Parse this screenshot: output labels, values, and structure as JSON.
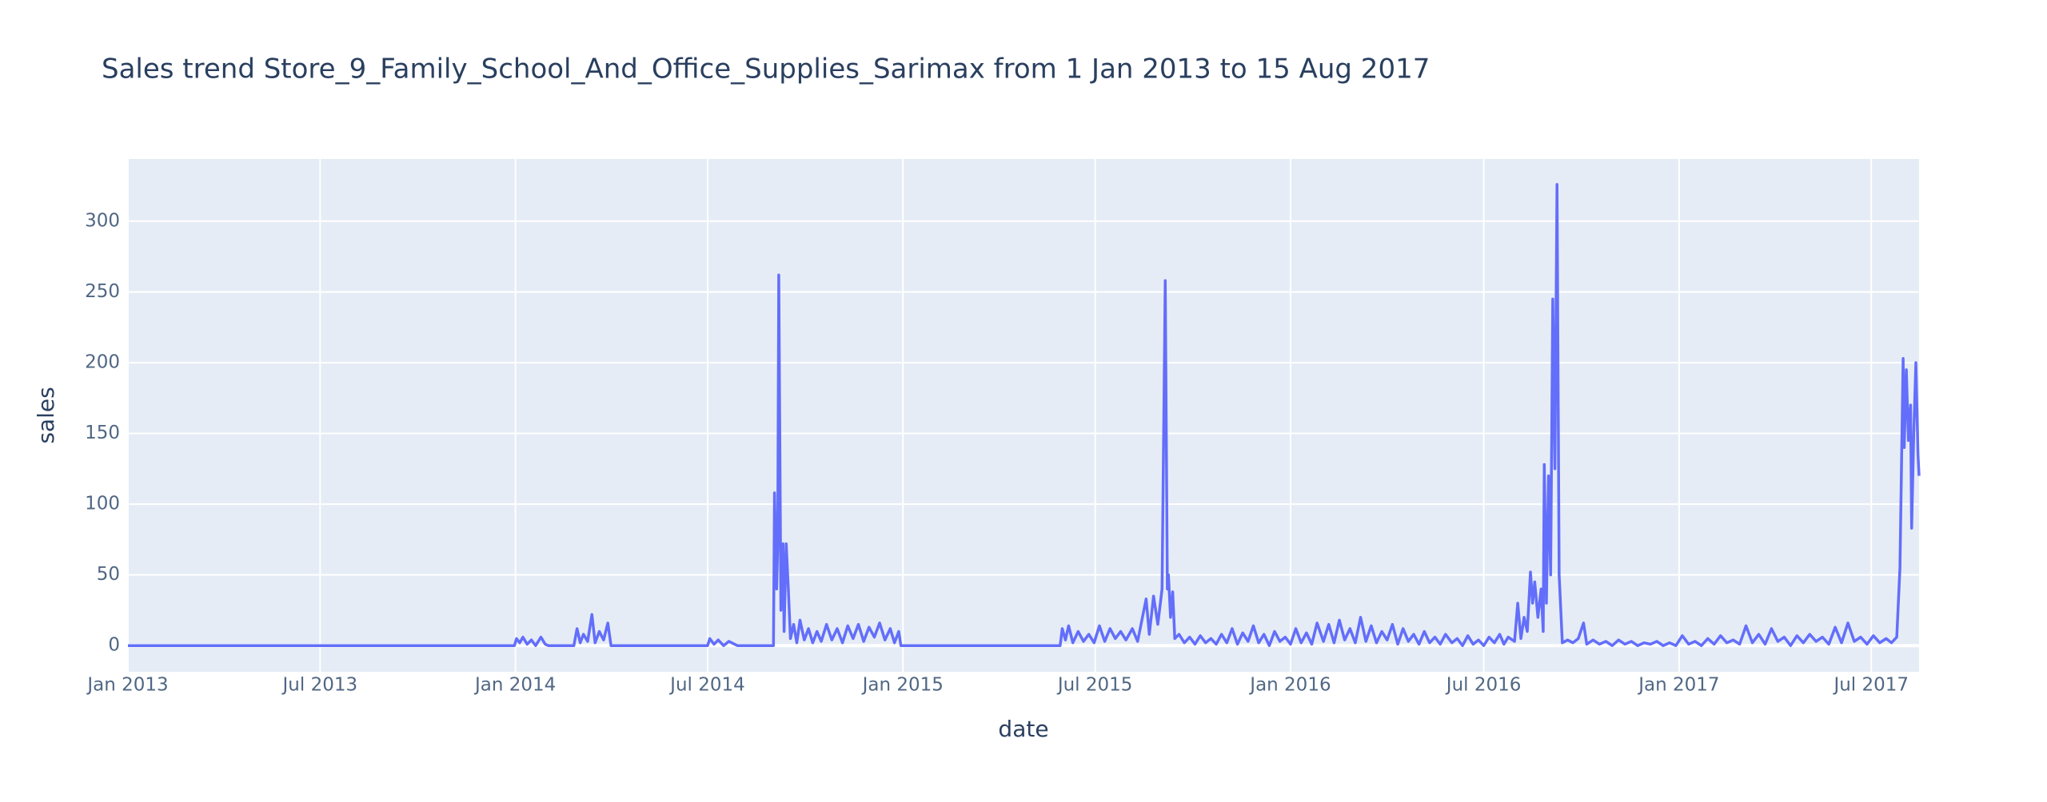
{
  "chart_data": {
    "type": "line",
    "title": "Sales trend Store_9_Family_School_And_Office_Supplies_Sarimax from  1 Jan 2013 to 15 Aug 2017",
    "x_label": "date",
    "y_label": "sales",
    "color": "#636efa",
    "grid": true,
    "xlim": [
      "2013-01-01",
      "2017-08-15"
    ],
    "xticks": [
      {
        "value": "2013-01-01",
        "label": "Jan 2013"
      },
      {
        "value": "2013-07-01",
        "label": "Jul 2013"
      },
      {
        "value": "2014-01-01",
        "label": "Jan 2014"
      },
      {
        "value": "2014-07-01",
        "label": "Jul 2014"
      },
      {
        "value": "2015-01-01",
        "label": "Jan 2015"
      },
      {
        "value": "2015-07-01",
        "label": "Jul 2015"
      },
      {
        "value": "2016-01-01",
        "label": "Jan 2016"
      },
      {
        "value": "2016-07-01",
        "label": "Jul 2016"
      },
      {
        "value": "2017-01-01",
        "label": "Jan 2017"
      },
      {
        "value": "2017-07-01",
        "label": "Jul 2017"
      }
    ],
    "ylim": [
      -18.5,
      344
    ],
    "yticks": [
      0,
      50,
      100,
      150,
      200,
      250,
      300
    ],
    "x": [
      "2013-01-01",
      "2013-12-31",
      "2014-01-02",
      "2014-01-05",
      "2014-01-08",
      "2014-01-12",
      "2014-01-16",
      "2014-01-20",
      "2014-01-25",
      "2014-01-29",
      "2014-02-01",
      "2014-02-25",
      "2014-02-28",
      "2014-03-03",
      "2014-03-06",
      "2014-03-10",
      "2014-03-14",
      "2014-03-17",
      "2014-03-21",
      "2014-03-25",
      "2014-03-29",
      "2014-04-01",
      "2014-07-01",
      "2014-07-03",
      "2014-07-07",
      "2014-07-11",
      "2014-07-16",
      "2014-07-21",
      "2014-07-29",
      "2014-09-01",
      "2014-09-02",
      "2014-09-04",
      "2014-09-05",
      "2014-09-06",
      "2014-09-08",
      "2014-09-10",
      "2014-09-11",
      "2014-09-13",
      "2014-09-15",
      "2014-09-17",
      "2014-09-20",
      "2014-09-23",
      "2014-09-26",
      "2014-09-30",
      "2014-10-04",
      "2014-10-08",
      "2014-10-12",
      "2014-10-16",
      "2014-10-21",
      "2014-10-26",
      "2014-10-31",
      "2014-11-05",
      "2014-11-10",
      "2014-11-15",
      "2014-11-20",
      "2014-11-25",
      "2014-11-30",
      "2014-12-05",
      "2014-12-10",
      "2014-12-15",
      "2014-12-20",
      "2014-12-24",
      "2014-12-28",
      "2014-12-30",
      "2015-05-29",
      "2015-05-31",
      "2015-06-03",
      "2015-06-06",
      "2015-06-10",
      "2015-06-15",
      "2015-06-20",
      "2015-06-25",
      "2015-06-30",
      "2015-07-05",
      "2015-07-10",
      "2015-07-15",
      "2015-07-20",
      "2015-07-25",
      "2015-07-30",
      "2015-08-05",
      "2015-08-10",
      "2015-08-18",
      "2015-08-21",
      "2015-08-25",
      "2015-08-29",
      "2015-09-02",
      "2015-09-05",
      "2015-09-07",
      "2015-09-08",
      "2015-09-10",
      "2015-09-12",
      "2015-09-14",
      "2015-09-18",
      "2015-09-23",
      "2015-09-28",
      "2015-10-03",
      "2015-10-08",
      "2015-10-13",
      "2015-10-18",
      "2015-10-23",
      "2015-10-28",
      "2015-11-02",
      "2015-11-07",
      "2015-11-12",
      "2015-11-17",
      "2015-11-22",
      "2015-11-27",
      "2015-12-02",
      "2015-12-07",
      "2015-12-12",
      "2015-12-17",
      "2015-12-22",
      "2015-12-27",
      "2016-01-01",
      "2016-01-06",
      "2016-01-11",
      "2016-01-16",
      "2016-01-21",
      "2016-01-26",
      "2016-02-01",
      "2016-02-06",
      "2016-02-11",
      "2016-02-16",
      "2016-02-21",
      "2016-02-26",
      "2016-03-02",
      "2016-03-07",
      "2016-03-12",
      "2016-03-17",
      "2016-03-22",
      "2016-03-27",
      "2016-04-01",
      "2016-04-06",
      "2016-04-11",
      "2016-04-16",
      "2016-04-21",
      "2016-04-26",
      "2016-05-01",
      "2016-05-06",
      "2016-05-11",
      "2016-05-16",
      "2016-05-21",
      "2016-05-26",
      "2016-06-01",
      "2016-06-06",
      "2016-06-11",
      "2016-06-16",
      "2016-06-21",
      "2016-06-26",
      "2016-07-01",
      "2016-07-06",
      "2016-07-11",
      "2016-07-16",
      "2016-07-20",
      "2016-07-24",
      "2016-07-30",
      "2016-08-02",
      "2016-08-05",
      "2016-08-08",
      "2016-08-11",
      "2016-08-14",
      "2016-08-16",
      "2016-08-18",
      "2016-08-21",
      "2016-08-24",
      "2016-08-26",
      "2016-08-27",
      "2016-08-29",
      "2016-08-31",
      "2016-09-02",
      "2016-09-04",
      "2016-09-06",
      "2016-09-08",
      "2016-09-10",
      "2016-09-13",
      "2016-09-18",
      "2016-09-23",
      "2016-09-28",
      "2016-10-03",
      "2016-10-06",
      "2016-10-12",
      "2016-10-18",
      "2016-10-24",
      "2016-10-30",
      "2016-11-05",
      "2016-11-11",
      "2016-11-17",
      "2016-11-23",
      "2016-11-29",
      "2016-12-05",
      "2016-12-11",
      "2016-12-17",
      "2016-12-23",
      "2016-12-29",
      "2017-01-04",
      "2017-01-10",
      "2017-01-16",
      "2017-01-22",
      "2017-01-28",
      "2017-02-03",
      "2017-02-09",
      "2017-02-15",
      "2017-02-21",
      "2017-02-27",
      "2017-03-05",
      "2017-03-11",
      "2017-03-17",
      "2017-03-23",
      "2017-03-29",
      "2017-04-04",
      "2017-04-10",
      "2017-04-16",
      "2017-04-22",
      "2017-04-28",
      "2017-05-04",
      "2017-05-10",
      "2017-05-16",
      "2017-05-22",
      "2017-05-28",
      "2017-06-03",
      "2017-06-09",
      "2017-06-15",
      "2017-06-21",
      "2017-06-27",
      "2017-07-03",
      "2017-07-09",
      "2017-07-15",
      "2017-07-20",
      "2017-07-25",
      "2017-07-28",
      "2017-07-31",
      "2017-08-01",
      "2017-08-03",
      "2017-08-05",
      "2017-08-07",
      "2017-08-08",
      "2017-08-10",
      "2017-08-12",
      "2017-08-14",
      "2017-08-15"
    ],
    "values": [
      0,
      0,
      5,
      2,
      6,
      1,
      4,
      0,
      6,
      1,
      0,
      0,
      12,
      2,
      8,
      3,
      22,
      2,
      10,
      4,
      16,
      0,
      0,
      5,
      1,
      4,
      0,
      3,
      0,
      0,
      108,
      40,
      70,
      262,
      25,
      72,
      10,
      72,
      40,
      5,
      15,
      2,
      18,
      4,
      12,
      2,
      10,
      3,
      15,
      4,
      12,
      2,
      14,
      5,
      15,
      3,
      13,
      6,
      16,
      4,
      12,
      2,
      10,
      0,
      0,
      12,
      4,
      14,
      2,
      10,
      3,
      8,
      2,
      14,
      3,
      12,
      5,
      10,
      4,
      12,
      3,
      33,
      8,
      35,
      15,
      40,
      258,
      40,
      50,
      20,
      38,
      5,
      8,
      2,
      6,
      1,
      7,
      2,
      5,
      1,
      8,
      2,
      12,
      1,
      9,
      3,
      14,
      2,
      8,
      0,
      10,
      3,
      6,
      1,
      12,
      2,
      9,
      1,
      16,
      3,
      15,
      2,
      18,
      4,
      12,
      2,
      20,
      3,
      14,
      2,
      10,
      4,
      15,
      1,
      12,
      3,
      8,
      1,
      10,
      2,
      6,
      1,
      8,
      2,
      5,
      0,
      7,
      1,
      4,
      0,
      6,
      2,
      8,
      1,
      6,
      3,
      30,
      5,
      20,
      10,
      52,
      30,
      45,
      20,
      40,
      10,
      128,
      30,
      120,
      50,
      245,
      125,
      326,
      50,
      2,
      4,
      2,
      5,
      16,
      1,
      4,
      1,
      3,
      0,
      4,
      1,
      3,
      0,
      2,
      1,
      3,
      0,
      2,
      0,
      7,
      1,
      3,
      0,
      5,
      1,
      7,
      2,
      4,
      1,
      14,
      2,
      8,
      1,
      12,
      3,
      6,
      0,
      7,
      2,
      8,
      3,
      6,
      1,
      13,
      2,
      16,
      3,
      6,
      1,
      7,
      2,
      5,
      2,
      6,
      55,
      203,
      140,
      195,
      145,
      170,
      83,
      150,
      200,
      135,
      120
    ]
  }
}
